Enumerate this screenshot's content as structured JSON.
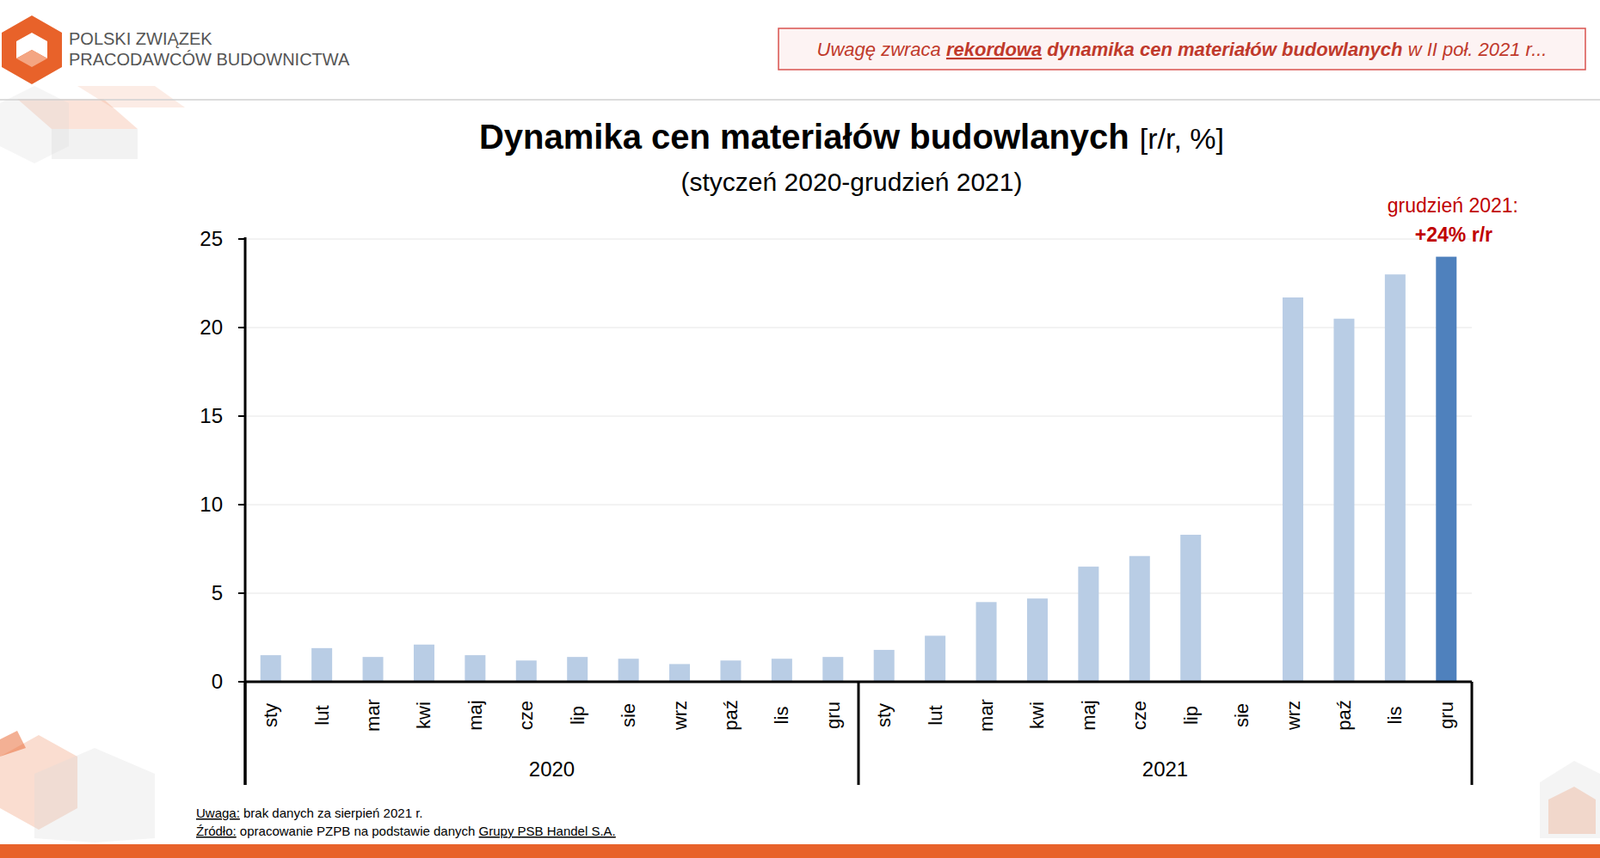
{
  "header": {
    "org_lines": [
      "POLSKI ZWIĄZEK",
      "PRACODAWCÓW BUDOWNICTWA"
    ],
    "banner": [
      "Uwagę zwraca ",
      "rekordowa",
      " dynamika cen materiałów budowlanych",
      " w II poł. 2021 r..."
    ]
  },
  "chart_data": {
    "type": "bar",
    "title": "Dynamika cen materiałów budowlanych",
    "y_label": "[r/r, %]",
    "subtitle": "(styczeń 2020-grudzień 2021)",
    "annotation": {
      "title": "grudzień 2021:",
      "text": "+24% r/r"
    },
    "categories": [
      "sty",
      "lut",
      "mar",
      "kwi",
      "maj",
      "cze",
      "lip",
      "sie",
      "wrz",
      "paź",
      "lis",
      "gru",
      "sty",
      "lut",
      "mar",
      "kwi",
      "maj",
      "cze",
      "lip",
      "sie",
      "wrz",
      "paź",
      "lis",
      "gru"
    ],
    "category_groups": [
      "2020",
      "2021"
    ],
    "values": [
      1.5,
      1.9,
      1.4,
      2.1,
      1.5,
      1.2,
      1.4,
      1.3,
      1.0,
      1.2,
      1.3,
      1.4,
      1.8,
      2.6,
      4.5,
      4.7,
      6.5,
      7.1,
      8.3,
      null,
      21.7,
      20.5,
      23.0,
      24
    ],
    "colors": [
      "#b9cde5",
      "#b9cde5",
      "#b9cde5",
      "#b9cde5",
      "#b9cde5",
      "#b9cde5",
      "#b9cde5",
      "#b9cde5",
      "#b9cde5",
      "#b9cde5",
      "#b9cde5",
      "#b9cde5",
      "#b9cde5",
      "#b9cde5",
      "#b9cde5",
      "#b9cde5",
      "#b9cde5",
      "#b9cde5",
      "#b9cde5",
      "#b9cde5",
      "#b9cde5",
      "#b9cde5",
      "#b9cde5",
      "#4f81bd"
    ],
    "ylim": [
      0,
      25
    ],
    "yticks": [
      0,
      5,
      10,
      15,
      20,
      25
    ],
    "grid": true
  },
  "notes": [
    [
      "Uwaga:",
      " brak danych za sierpień 2021 r."
    ],
    [
      "Źródło:",
      " opracowanie PZPB na podstawie danych ",
      "Grupy PSB Handel S.A."
    ]
  ]
}
